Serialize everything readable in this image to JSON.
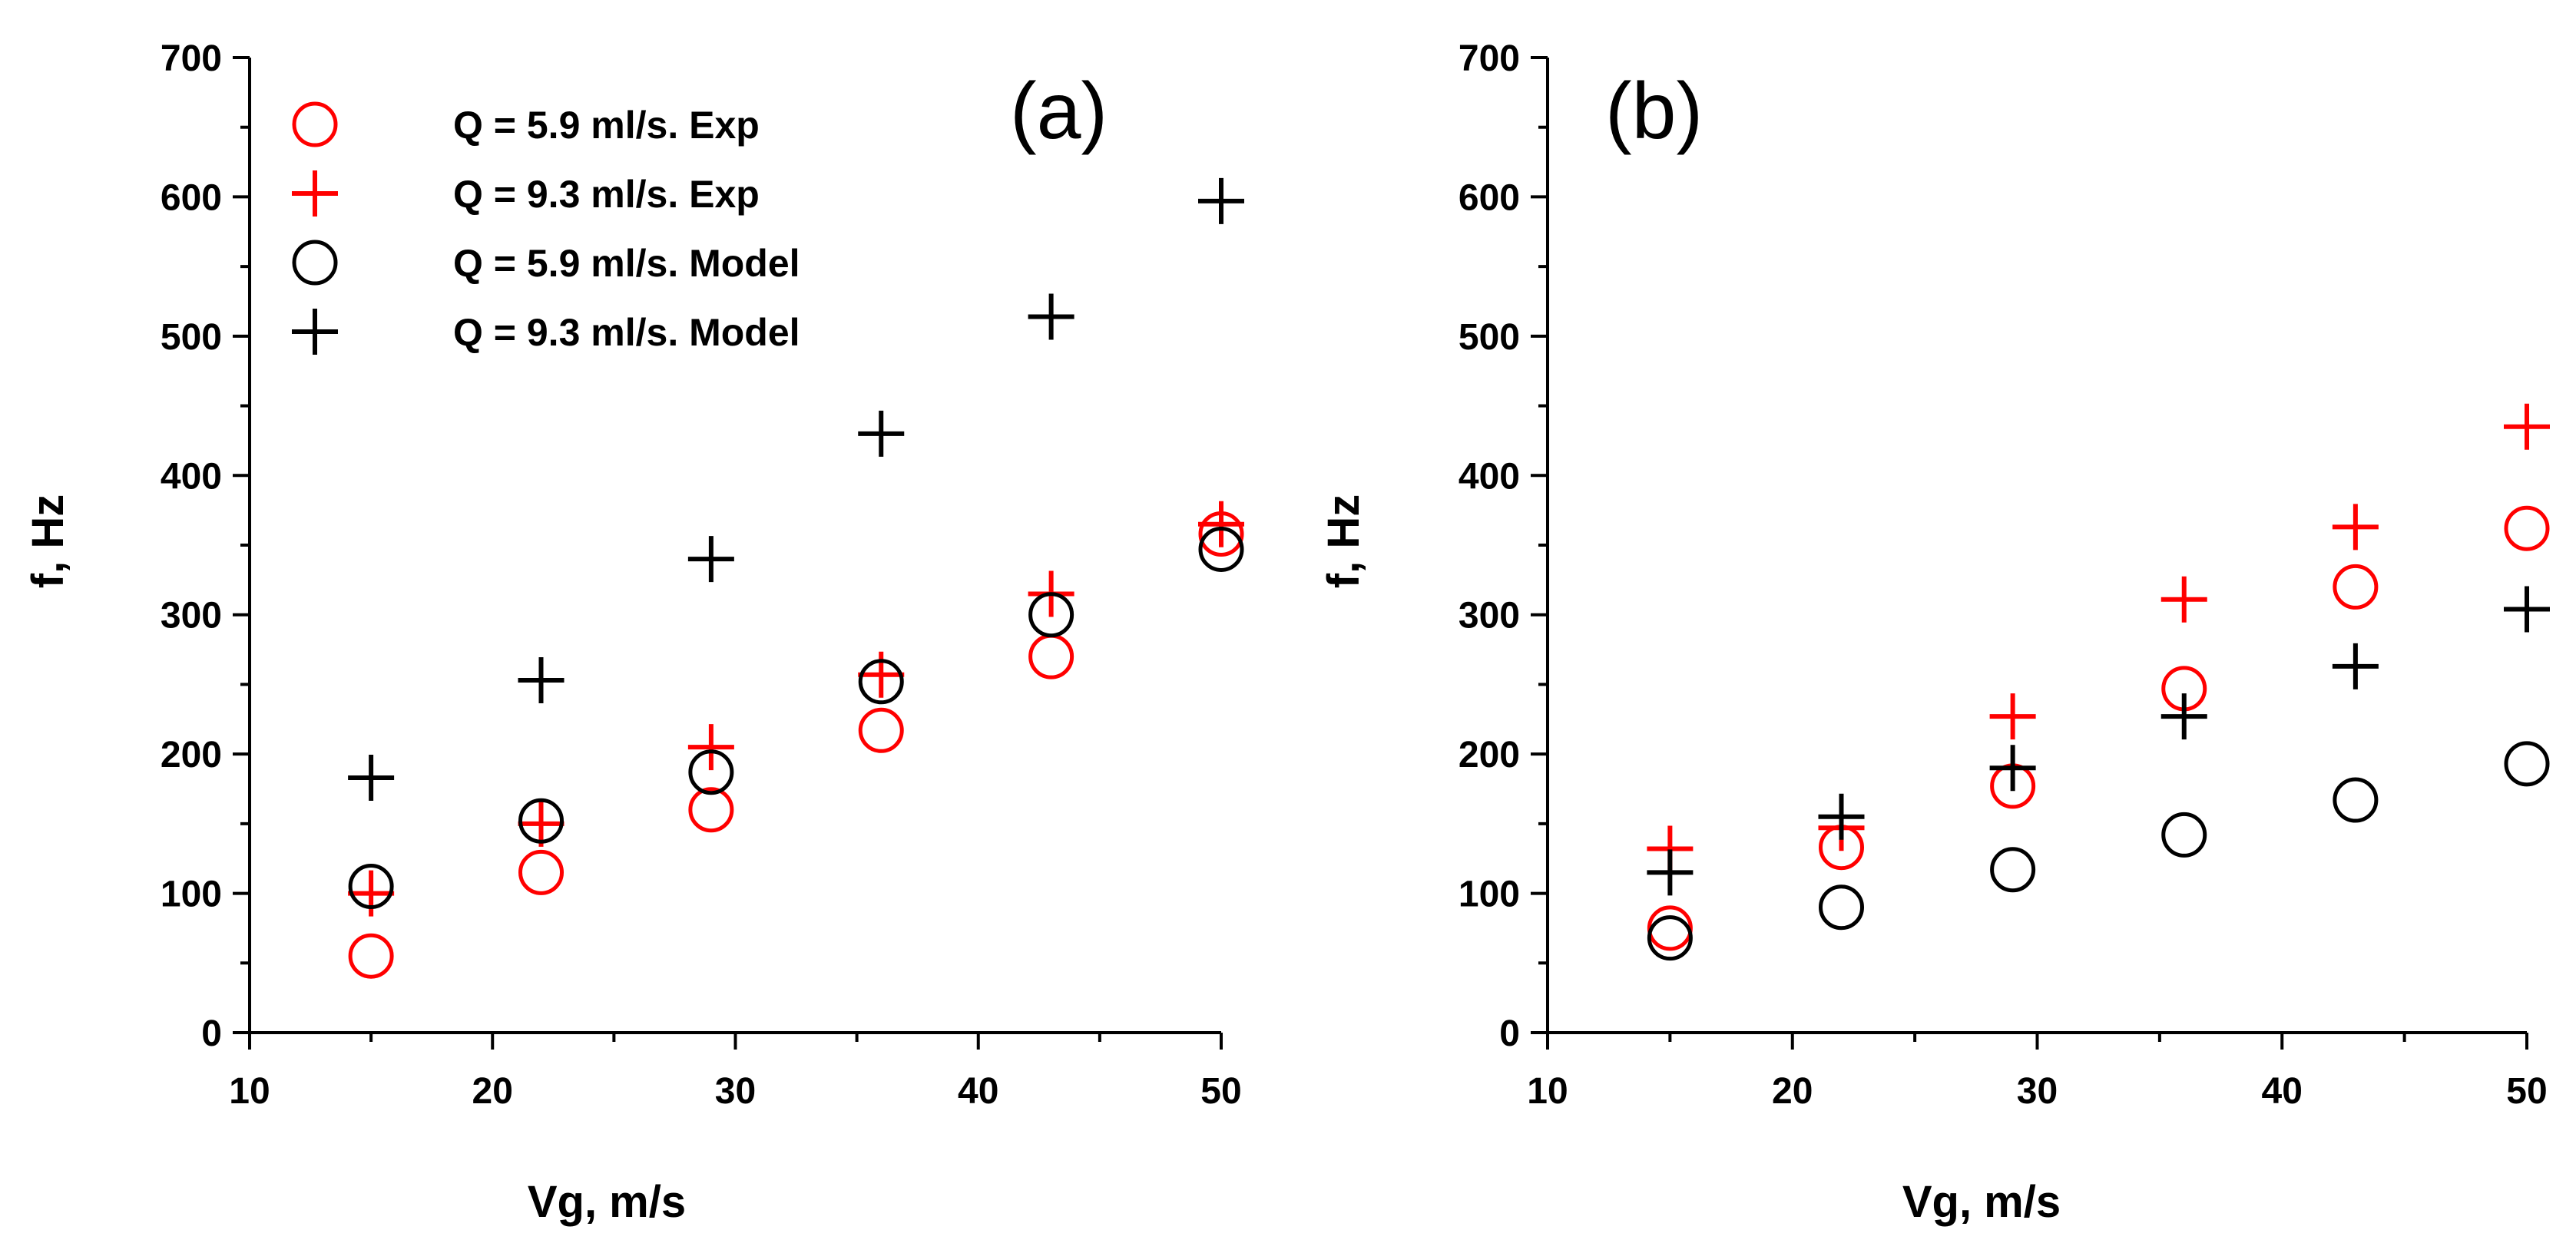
{
  "colors": {
    "exp": "#ff0000",
    "model": "#000000",
    "axis": "#000000",
    "background": "#ffffff"
  },
  "chart_data": [
    {
      "id": "a",
      "type": "scatter",
      "panel_label": "(a)",
      "xlabel": "Vg, m/s",
      "ylabel": "f, Hz",
      "xlim": [
        10,
        50
      ],
      "ylim": [
        0,
        700
      ],
      "xticks": [
        10,
        20,
        30,
        40,
        50
      ],
      "yticks": [
        0,
        100,
        200,
        300,
        400,
        500,
        600,
        700
      ],
      "legend": {
        "placement": "top-left",
        "entries": [
          {
            "label": "Q = 5.9 ml/s. Exp",
            "marker": "circle",
            "color": "#ff0000"
          },
          {
            "label": "Q = 9.3 ml/s. Exp",
            "marker": "plus",
            "color": "#ff0000"
          },
          {
            "label": "Q = 5.9 ml/s. Model",
            "marker": "circle",
            "color": "#000000"
          },
          {
            "label": "Q = 9.3 ml/s. Model",
            "marker": "plus",
            "color": "#000000"
          }
        ]
      },
      "series": [
        {
          "name": "Q = 5.9 ml/s. Exp",
          "marker": "circle",
          "color": "#ff0000",
          "x": [
            15,
            22,
            29,
            36,
            43,
            50
          ],
          "y": [
            55,
            115,
            160,
            217,
            270,
            358
          ]
        },
        {
          "name": "Q = 9.3 ml/s. Exp",
          "marker": "plus",
          "color": "#ff0000",
          "x": [
            15,
            22,
            29,
            36,
            43,
            50
          ],
          "y": [
            100,
            150,
            205,
            257,
            315,
            365
          ]
        },
        {
          "name": "Q = 5.9 ml/s. Model",
          "marker": "circle",
          "color": "#000000",
          "x": [
            15,
            22,
            29,
            36,
            43,
            50
          ],
          "y": [
            105,
            152,
            187,
            252,
            300,
            347
          ]
        },
        {
          "name": "Q = 9.3 ml/s. Model",
          "marker": "plus",
          "color": "#000000",
          "x": [
            15,
            22,
            29,
            36,
            43,
            50
          ],
          "y": [
            183,
            253,
            340,
            430,
            514,
            597
          ]
        }
      ]
    },
    {
      "id": "b",
      "type": "scatter",
      "panel_label": "(b)",
      "xlabel": "Vg, m/s",
      "ylabel": "f, Hz",
      "xlim": [
        10,
        50
      ],
      "ylim": [
        0,
        700
      ],
      "xticks": [
        10,
        20,
        30,
        40,
        50
      ],
      "yticks": [
        0,
        100,
        200,
        300,
        400,
        500,
        600,
        700
      ],
      "series": [
        {
          "name": "Q = 5.9 ml/s. Exp",
          "marker": "circle",
          "color": "#ff0000",
          "x": [
            15,
            22,
            29,
            36,
            43,
            50
          ],
          "y": [
            75,
            133,
            177,
            247,
            320,
            362
          ]
        },
        {
          "name": "Q = 9.3 ml/s. Exp",
          "marker": "plus",
          "color": "#ff0000",
          "x": [
            15,
            22,
            29,
            36,
            43,
            50
          ],
          "y": [
            132,
            147,
            227,
            311,
            363,
            435
          ]
        },
        {
          "name": "Q = 5.9 ml/s. Model",
          "marker": "circle",
          "color": "#000000",
          "x": [
            15,
            22,
            29,
            36,
            43,
            50
          ],
          "y": [
            68,
            90,
            117,
            142,
            167,
            193
          ]
        },
        {
          "name": "Q = 9.3 ml/s. Model",
          "marker": "plus",
          "color": "#000000",
          "x": [
            15,
            22,
            29,
            36,
            43,
            50
          ],
          "y": [
            115,
            155,
            190,
            227,
            263,
            304
          ]
        }
      ]
    }
  ]
}
